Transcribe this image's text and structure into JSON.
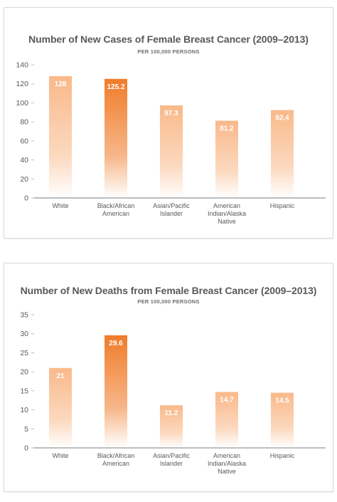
{
  "chart_data": [
    {
      "type": "bar",
      "title": "Number of New Cases of Female Breast Cancer (2009–2013)",
      "subtitle": "PER 100,000 PERSONS",
      "categories": [
        "White",
        "Black/African American",
        "Asian/Pacific Islander",
        "American Indian/Alaska Native",
        "Hispanic"
      ],
      "category_lines": [
        [
          "White"
        ],
        [
          "Black/African",
          "American"
        ],
        [
          "Asian/Pacific",
          "Islander"
        ],
        [
          "American",
          "Indian/Alaska",
          "Native"
        ],
        [
          "Hispanic"
        ]
      ],
      "values": [
        128,
        125.2,
        97.3,
        81.2,
        92.4
      ],
      "value_labels": [
        "128",
        "125.2",
        "97.3",
        "81.2",
        "92.4"
      ],
      "highlight_index": 1,
      "yticks": [
        0,
        20,
        40,
        60,
        80,
        100,
        120,
        140
      ],
      "ylim": [
        0,
        140
      ],
      "xlabel": "",
      "ylabel": "",
      "grid": false,
      "legend": "none"
    },
    {
      "type": "bar",
      "title": "Number of New Deaths from Female Breast Cancer (2009–2013)",
      "subtitle": "PER 100,000 PERSONS",
      "categories": [
        "White",
        "Black/African American",
        "Asian/Pacific Islander",
        "American Indian/Alaska Native",
        "Hispanic"
      ],
      "category_lines": [
        [
          "White"
        ],
        [
          "Black/African",
          "American"
        ],
        [
          "Asian/Pacific",
          "Islander"
        ],
        [
          "American",
          "Indian/Alaska",
          "Native"
        ],
        [
          "Hispanic"
        ]
      ],
      "values": [
        21,
        29.6,
        11.2,
        14.7,
        14.5
      ],
      "value_labels": [
        "21",
        "29.6",
        "11.2",
        "14.7",
        "14.5"
      ],
      "highlight_index": 1,
      "yticks": [
        0,
        5,
        10,
        15,
        20,
        25,
        30,
        35
      ],
      "ylim": [
        0,
        35
      ],
      "xlabel": "",
      "ylabel": "",
      "grid": false,
      "legend": "none"
    }
  ],
  "colors": {
    "bar_base": "#f9b98a",
    "bar_highlight": "#f07c2a",
    "axis": "#bcbec0",
    "tick_text": "#58595b",
    "title_text": "#58595b"
  }
}
